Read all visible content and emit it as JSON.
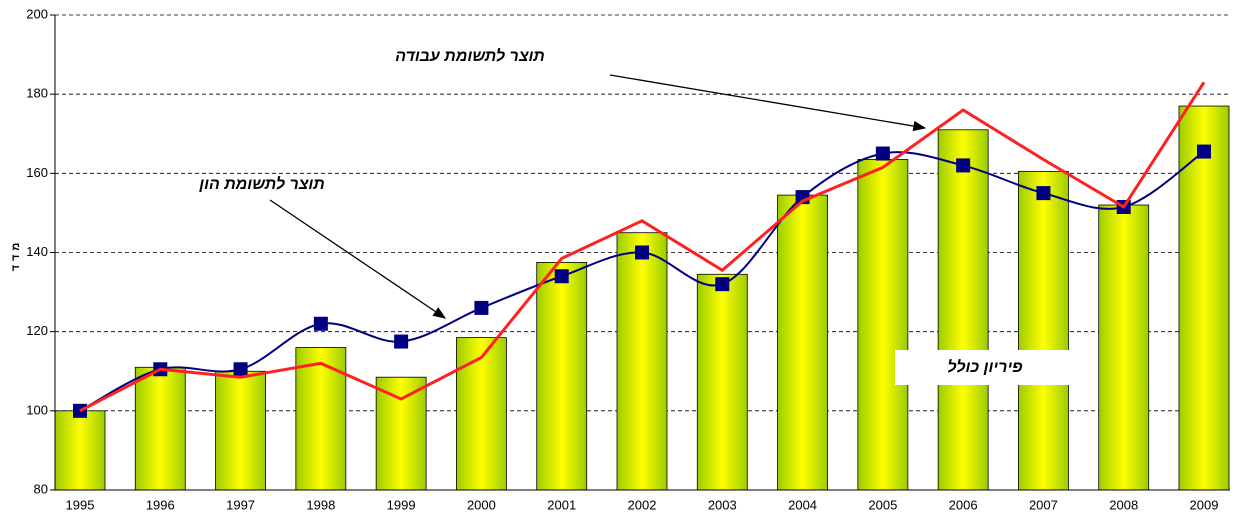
{
  "chart_data": {
    "type": "bar_line",
    "y_label": "מדד",
    "categories": [
      "1995",
      "1996",
      "1997",
      "1998",
      "1999",
      "2000",
      "2001",
      "2002",
      "2003",
      "2004",
      "2005",
      "2006",
      "2007",
      "2008",
      "2009"
    ],
    "series": [
      {
        "name": "פיריון כולל",
        "type": "bar",
        "color": "#e8f000",
        "values": [
          100,
          111,
          110,
          116,
          108.5,
          118.5,
          137.5,
          145,
          134.5,
          154.5,
          163.5,
          171,
          160.5,
          152,
          177
        ]
      },
      {
        "name": "תוצר לתשומת הון",
        "type": "line",
        "color": "#000080",
        "values": [
          100,
          110.5,
          110.5,
          122,
          117.5,
          126,
          134,
          140,
          132,
          154,
          165,
          162,
          155,
          151.5,
          165.5
        ]
      },
      {
        "name": "תוצר לתשומת עבודה",
        "type": "line",
        "color": "#ff2020",
        "values": [
          100,
          110.5,
          108.5,
          112,
          103,
          113.5,
          138.5,
          148,
          135.5,
          153,
          161.5,
          176,
          163.5,
          151.5,
          183
        ]
      }
    ],
    "ylim": [
      80,
      200
    ],
    "yticks": [
      80,
      100,
      120,
      140,
      160,
      180,
      200
    ],
    "grid": true
  }
}
